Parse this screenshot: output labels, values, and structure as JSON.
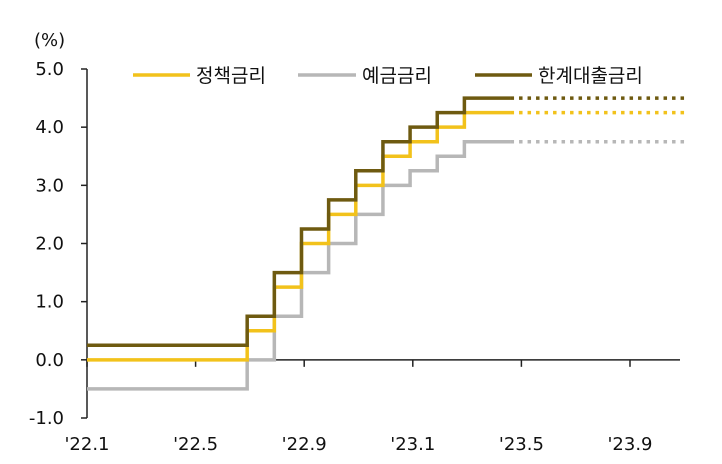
{
  "chart_data": {
    "type": "line",
    "unit_label": "(%)",
    "ylim": [
      -1.0,
      5.0
    ],
    "y_ticks": [
      -1.0,
      0.0,
      1.0,
      2.0,
      3.0,
      4.0,
      5.0
    ],
    "y_tick_labels": [
      "-1.0",
      "0.0",
      "1.0",
      "2.0",
      "3.0",
      "4.0",
      "5.0"
    ],
    "x_ticks": [
      0,
      4,
      8,
      12,
      16,
      20
    ],
    "x_tick_labels": [
      "'22.1",
      "'22.5",
      "'22.9",
      "'23.1",
      "'23.5",
      "'23.9"
    ],
    "xlim": [
      0,
      22
    ],
    "legend_position": "top",
    "series": [
      {
        "name": "정책금리",
        "color": "#F2C21B",
        "step_x": [
          0,
          6.8,
          7.85,
          8.9,
          9.95,
          11.0,
          12.0,
          13.0,
          14.0,
          15.0,
          16.0,
          17.0,
          18.0,
          19.0,
          20.05
        ],
        "step_y": [
          0.0,
          0.0,
          0.5,
          1.25,
          2.0,
          2.5,
          3.0,
          3.5,
          3.75,
          4.0,
          4.25,
          4.25,
          4.25,
          4.25,
          4.25
        ],
        "x": [
          0,
          5.9,
          6.9,
          7.9,
          8.9,
          9.9,
          10.9,
          11.9,
          12.9,
          13.9,
          14.9,
          15.6
        ],
        "values": [
          0.0,
          0.5,
          1.25,
          2.0,
          2.5,
          3.0,
          3.5,
          3.75,
          4.0,
          4.25,
          4.25,
          4.25
        ],
        "projection_end": 22,
        "projection_value": 4.25
      },
      {
        "name": "예금금리",
        "color": "#B7B7B7",
        "x": [
          0,
          5.9,
          6.9,
          7.9,
          8.9,
          9.9,
          10.9,
          11.9,
          12.9,
          13.9,
          14.9,
          15.6
        ],
        "values": [
          -0.5,
          0.0,
          0.75,
          1.5,
          2.0,
          2.5,
          3.0,
          3.25,
          3.5,
          3.75,
          3.75,
          3.75
        ],
        "projection_end": 22,
        "projection_value": 3.75
      },
      {
        "name": "한계대출금리",
        "color": "#6E5A10",
        "x": [
          0,
          5.9,
          6.9,
          7.9,
          8.9,
          9.9,
          10.9,
          11.9,
          12.9,
          13.9,
          14.9,
          15.6
        ],
        "values": [
          0.25,
          0.75,
          1.5,
          2.25,
          2.75,
          3.25,
          3.75,
          4.0,
          4.25,
          4.5,
          4.5,
          4.5
        ],
        "projection_end": 22,
        "projection_value": 4.5
      }
    ]
  }
}
